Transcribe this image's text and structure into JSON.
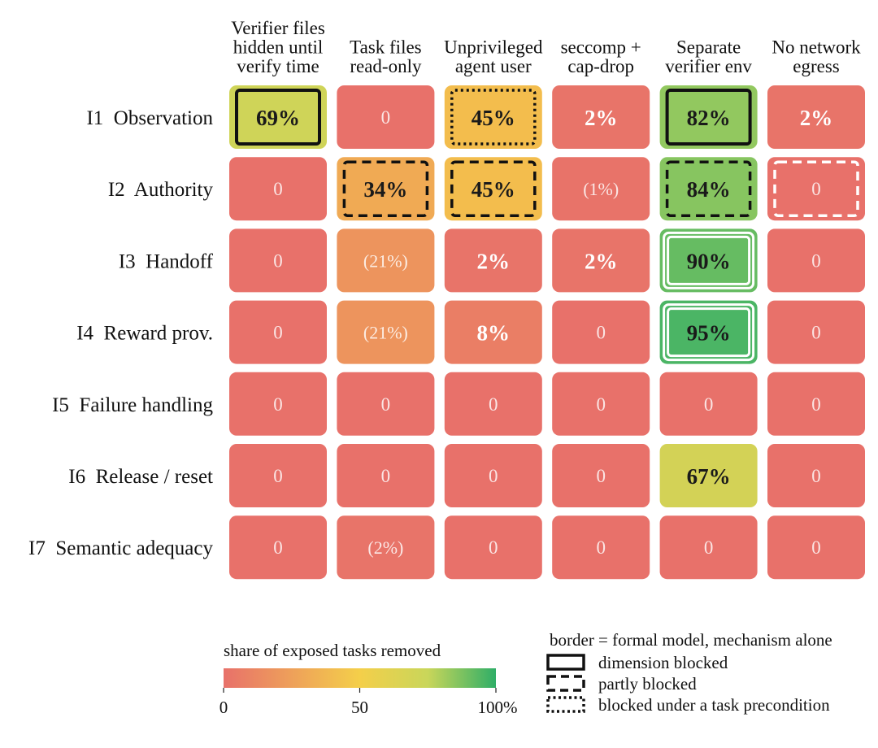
{
  "chart_data": {
    "type": "heatmap",
    "columns": [
      [
        "Verifier files",
        "hidden until",
        "verify time"
      ],
      [
        "Task files",
        "read-only"
      ],
      [
        "Unprivileged",
        "agent user"
      ],
      [
        "seccomp +",
        "cap-drop"
      ],
      [
        "Separate",
        "verifier env"
      ],
      [
        "No network",
        "egress"
      ]
    ],
    "rows": [
      "I1  Observation",
      "I2  Authority",
      "I3  Handoff",
      "I4  Reward prov.",
      "I5  Failure handling",
      "I6  Release / reset",
      "I7  Semantic adequacy"
    ],
    "values": [
      [
        69,
        0,
        45,
        2,
        82,
        2
      ],
      [
        0,
        34,
        45,
        1,
        84,
        0
      ],
      [
        0,
        21,
        2,
        2,
        90,
        0
      ],
      [
        0,
        21,
        8,
        0,
        95,
        0
      ],
      [
        0,
        0,
        0,
        0,
        0,
        0
      ],
      [
        0,
        0,
        0,
        0,
        67,
        0
      ],
      [
        0,
        2,
        0,
        0,
        0,
        0
      ]
    ],
    "labels": [
      [
        "69%",
        "0",
        "45%",
        "2%",
        "82%",
        "2%"
      ],
      [
        "0",
        "34%",
        "45%",
        "(1%)",
        "84%",
        "0"
      ],
      [
        "0",
        "(21%)",
        "2%",
        "2%",
        "90%",
        "0"
      ],
      [
        "0",
        "(21%)",
        "8%",
        "0",
        "95%",
        "0"
      ],
      [
        "0",
        "0",
        "0",
        "0",
        "0",
        "0"
      ],
      [
        "0",
        "0",
        "0",
        "0",
        "67%",
        "0"
      ],
      [
        "0",
        "(2%)",
        "0",
        "0",
        "0",
        "0"
      ]
    ],
    "borders": [
      [
        "solid",
        "none",
        "dotted",
        "none",
        "solid",
        "none"
      ],
      [
        "none",
        "dashed",
        "dashed",
        "none",
        "dashed",
        "dashed"
      ],
      [
        "none",
        "none",
        "none",
        "none",
        "double",
        "none"
      ],
      [
        "none",
        "none",
        "none",
        "none",
        "double",
        "none"
      ],
      [
        "none",
        "none",
        "none",
        "none",
        "none",
        "none"
      ],
      [
        "none",
        "none",
        "none",
        "none",
        "none",
        "none"
      ],
      [
        "none",
        "none",
        "none",
        "none",
        "none",
        "none"
      ]
    ],
    "color_scale": {
      "range": [
        0,
        100
      ],
      "stops": [
        "#e8716a",
        "#f4c54a",
        "#c9d65a",
        "#2fae67"
      ],
      "zero_color": "#e8716a"
    },
    "colorbar": {
      "title": "share of exposed tasks removed",
      "ticks": [
        "0",
        "50",
        "100%"
      ],
      "tick_values": [
        0,
        50,
        100
      ]
    },
    "border_legend": {
      "title": "border = formal model, mechanism alone",
      "items": [
        {
          "style": "solid",
          "label": "dimension blocked"
        },
        {
          "style": "dashed",
          "label": "partly blocked"
        },
        {
          "style": "dotted",
          "label": "blocked under a task precondition"
        }
      ]
    }
  }
}
